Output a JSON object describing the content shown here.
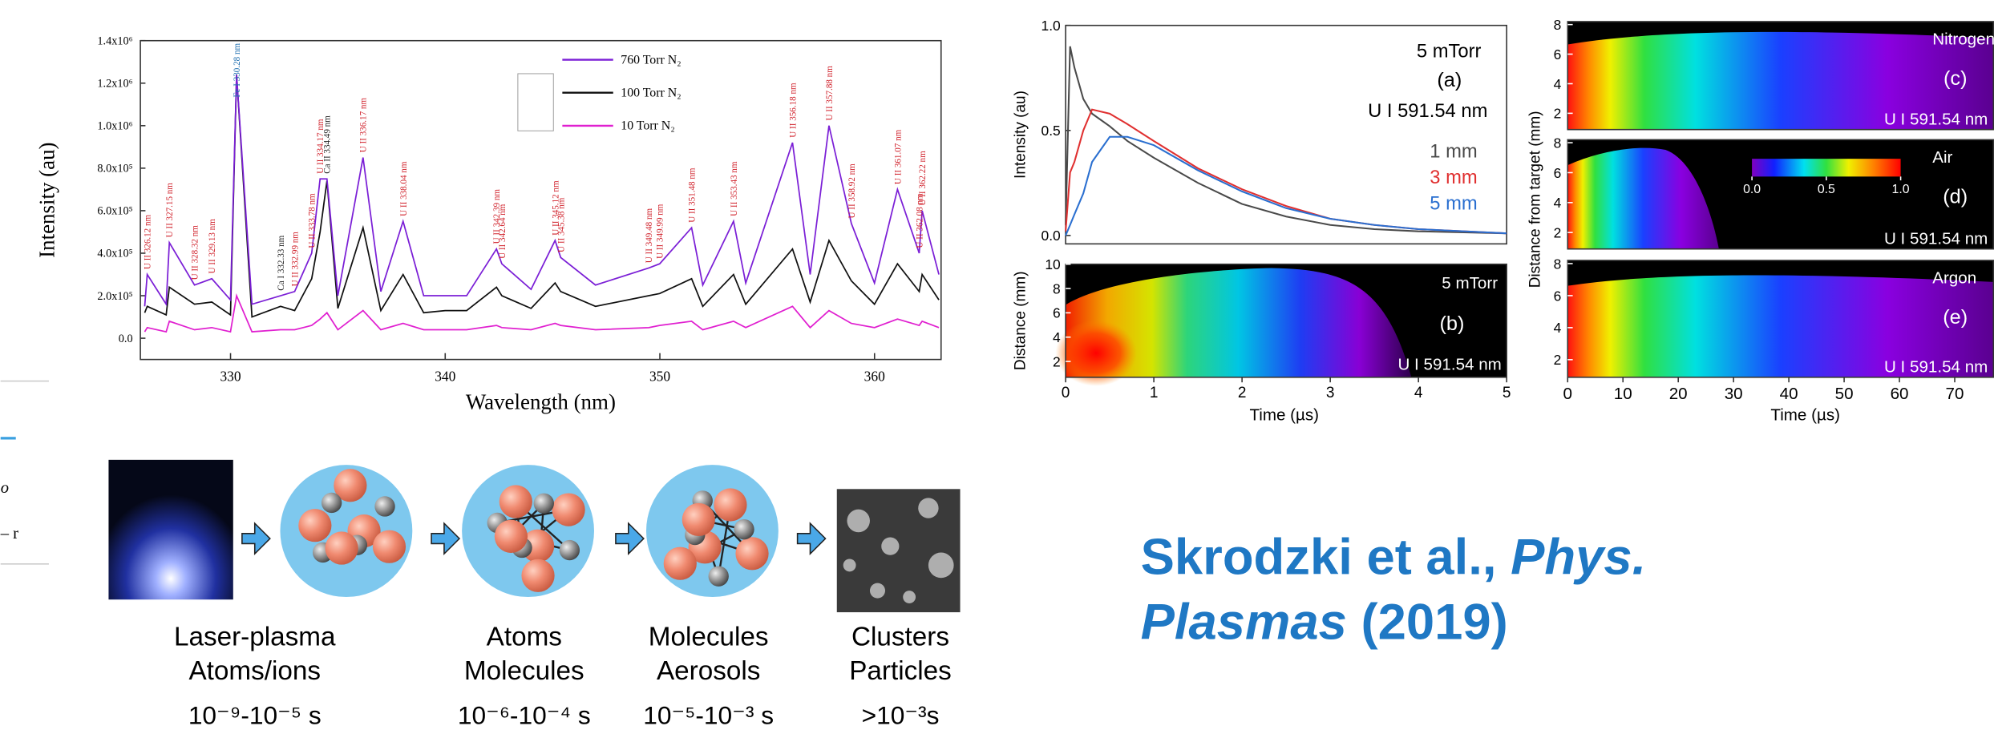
{
  "chart_data": [
    {
      "type": "line",
      "x_label": "Wavelength (nm)",
      "y_label": "Intensity (au)",
      "x": [
        326,
        326.12,
        327,
        327.15,
        328.32,
        329.13,
        330,
        330.28,
        331,
        332.33,
        332.99,
        333.78,
        334.17,
        334.49,
        335,
        336.17,
        337,
        338.04,
        339,
        340,
        341,
        342.39,
        342.64,
        344,
        345.12,
        345.38,
        347,
        349.48,
        349.99,
        351.48,
        352,
        353.43,
        354,
        356.18,
        357,
        357.88,
        358.92,
        360,
        361.07,
        362.08,
        362.22,
        363
      ],
      "series": [
        {
          "name": "760 Torr N₂",
          "color": "#7b1fd6",
          "values": [
            150000,
            300000,
            160000,
            450000,
            250000,
            280000,
            180000,
            1240000,
            160000,
            200000,
            220000,
            400000,
            750000,
            750000,
            200000,
            850000,
            220000,
            550000,
            200000,
            200000,
            200000,
            420000,
            350000,
            230000,
            460000,
            380000,
            250000,
            330000,
            350000,
            520000,
            250000,
            550000,
            260000,
            920000,
            300000,
            1000000,
            540000,
            260000,
            700000,
            400000,
            600000,
            300000
          ]
        },
        {
          "name": "100 Torr N₂",
          "color": "#111111",
          "values": [
            120000,
            150000,
            110000,
            240000,
            160000,
            170000,
            110000,
            1240000,
            100000,
            150000,
            130000,
            280000,
            500000,
            740000,
            140000,
            520000,
            130000,
            300000,
            120000,
            130000,
            130000,
            240000,
            200000,
            140000,
            260000,
            220000,
            150000,
            200000,
            210000,
            280000,
            150000,
            300000,
            160000,
            420000,
            170000,
            460000,
            270000,
            160000,
            350000,
            220000,
            300000,
            180000
          ]
        },
        {
          "name": "10 Torr N₂",
          "color": "#e020d0",
          "values": [
            30000,
            50000,
            30000,
            80000,
            40000,
            50000,
            30000,
            200000,
            30000,
            40000,
            40000,
            60000,
            90000,
            120000,
            40000,
            130000,
            40000,
            70000,
            40000,
            40000,
            40000,
            60000,
            50000,
            40000,
            70000,
            60000,
            40000,
            50000,
            60000,
            80000,
            40000,
            80000,
            50000,
            150000,
            50000,
            130000,
            70000,
            50000,
            90000,
            60000,
            80000,
            50000
          ]
        }
      ],
      "xlim": [
        325.8,
        363.1
      ],
      "xticks": [
        330,
        340,
        350,
        360
      ],
      "ylim": [
        -100000,
        1400000
      ],
      "yticks": [
        {
          "value": 0,
          "label": "0.0"
        },
        {
          "value": 200000,
          "label": "2.0x10⁵"
        },
        {
          "value": 400000,
          "label": "4.0x10⁵"
        },
        {
          "value": 600000,
          "label": "6.0x10⁵"
        },
        {
          "value": 800000,
          "label": "8.0x10⁵"
        },
        {
          "value": 1000000,
          "label": "1.0x10⁶"
        },
        {
          "value": 1200000,
          "label": "1.2x10⁶"
        },
        {
          "value": 1400000,
          "label": "1.4x10⁶"
        }
      ],
      "annotations": [
        {
          "text": "U II 326.12 nm",
          "x": 326.12,
          "color": "#d0202a"
        },
        {
          "text": "U II 327.15 nm",
          "x": 327.15,
          "color": "#d0202a"
        },
        {
          "text": "U II 328.32 nm",
          "x": 328.32,
          "color": "#d0202a"
        },
        {
          "text": "U II 329.13 nm",
          "x": 329.13,
          "color": "#d0202a"
        },
        {
          "text": "Fe I 330.28 nm",
          "x": 330.28,
          "color": "#1f6fb0"
        },
        {
          "text": "U II 332.99 nm",
          "x": 332.99,
          "color": "#d0202a"
        },
        {
          "text": "Ca I 332.33 nm",
          "x": 332.33,
          "color": "#222222"
        },
        {
          "text": "U II 333.78 nm",
          "x": 333.78,
          "color": "#d0202a"
        },
        {
          "text": "U II 334.17 nm",
          "x": 334.17,
          "color": "#d0202a"
        },
        {
          "text": "Ca II 334.49 nm",
          "x": 334.49,
          "color": "#222222"
        },
        {
          "text": "U II 336.17 nm",
          "x": 336.17,
          "color": "#d0202a"
        },
        {
          "text": "U II 338.04 nm",
          "x": 338.04,
          "color": "#d0202a"
        },
        {
          "text": "U II 342.39 nm",
          "x": 342.39,
          "color": "#d0202a"
        },
        {
          "text": "U II 342.64 nm",
          "x": 342.64,
          "color": "#d0202a"
        },
        {
          "text": "U II 345.12 nm",
          "x": 345.12,
          "color": "#d0202a"
        },
        {
          "text": "U II 345.38 nm",
          "x": 345.38,
          "color": "#d0202a"
        },
        {
          "text": "U II 349.48 nm",
          "x": 349.48,
          "color": "#d0202a"
        },
        {
          "text": "U II 349.99 nm",
          "x": 349.99,
          "color": "#d0202a"
        },
        {
          "text": "U II 351.48 nm",
          "x": 351.48,
          "color": "#d0202a"
        },
        {
          "text": "U II 353.43 nm",
          "x": 353.43,
          "color": "#d0202a"
        },
        {
          "text": "U II 356.18 nm",
          "x": 356.18,
          "color": "#d0202a"
        },
        {
          "text": "U II 357.88 nm",
          "x": 357.88,
          "color": "#d0202a"
        },
        {
          "text": "U II 358.92 nm",
          "x": 358.92,
          "color": "#d0202a"
        },
        {
          "text": "U II 361.07 nm",
          "x": 361.07,
          "color": "#d0202a"
        },
        {
          "text": "U II 362.08 nm",
          "x": 362.08,
          "color": "#d0202a"
        },
        {
          "text": "U II 362.22 nm",
          "x": 362.22,
          "color": "#d0202a"
        }
      ]
    },
    {
      "type": "line",
      "y_label": "Intensity (au)",
      "x": [
        0,
        0.05,
        0.1,
        0.2,
        0.3,
        0.5,
        0.7,
        1,
        1.5,
        2,
        2.5,
        3,
        3.5,
        4,
        5
      ],
      "series": [
        {
          "name": "1 mm",
          "color": "#4a4a4a",
          "values": [
            0.05,
            0.9,
            0.8,
            0.65,
            0.58,
            0.52,
            0.45,
            0.37,
            0.25,
            0.15,
            0.09,
            0.05,
            0.03,
            0.02,
            0.01
          ]
        },
        {
          "name": "3 mm",
          "color": "#e03030",
          "values": [
            0.02,
            0.3,
            0.35,
            0.5,
            0.6,
            0.58,
            0.53,
            0.45,
            0.32,
            0.22,
            0.14,
            0.08,
            0.05,
            0.03,
            0.01
          ]
        },
        {
          "name": "5 mm",
          "color": "#2a6fd0",
          "values": [
            0,
            0.05,
            0.1,
            0.2,
            0.35,
            0.47,
            0.47,
            0.43,
            0.31,
            0.21,
            0.13,
            0.08,
            0.05,
            0.03,
            0.01
          ]
        }
      ],
      "xlim": [
        0,
        5
      ],
      "ylim": [
        -0.04,
        1.0
      ],
      "yticks": [
        {
          "value": 0,
          "label": "0.0"
        },
        {
          "value": 0.5,
          "label": "0.5"
        },
        {
          "value": 1,
          "label": "1.0"
        }
      ],
      "annotations": [
        "5 mTorr",
        "(a)",
        "U I 591.54 nm"
      ]
    },
    {
      "type": "heatmap",
      "x_label": "Time (µs)",
      "y_label": "Distance (mm)",
      "xlim": [
        0,
        5
      ],
      "xticks": [
        0,
        1,
        2,
        3,
        4,
        5
      ],
      "ylim": [
        0.7,
        10
      ],
      "yticks": [
        2,
        4,
        6,
        8,
        10
      ],
      "annotations": [
        "5 mTorr",
        "(b)",
        "U I 591.54 nm"
      ]
    },
    {
      "type": "heatmap",
      "x_label": "Time (µs)",
      "y_label": "Distance from target (mm)",
      "xlim": [
        0,
        77
      ],
      "xticks": [
        0,
        10,
        20,
        30,
        40,
        50,
        60,
        70
      ],
      "colorbar": {
        "lim": [
          0,
          1
        ],
        "ticks": [
          {
            "value": 0,
            "label": "0.0"
          },
          {
            "value": 0.5,
            "label": "0.5"
          },
          {
            "value": 1,
            "label": "1.0"
          }
        ]
      },
      "panels": [
        {
          "gas": "Nitrogen",
          "tag": "(c)",
          "line": "U I 591.54 nm",
          "ylim": [
            0.9,
            8.2
          ],
          "yticks": [
            2,
            4,
            6,
            8
          ]
        },
        {
          "gas": "Air",
          "tag": "(d)",
          "line": "U I 591.54 nm",
          "ylim": [
            0.9,
            8.2
          ],
          "yticks": [
            2,
            4,
            6,
            8
          ]
        },
        {
          "gas": "Argon",
          "tag": "(e)",
          "line": "U I 591.54 nm",
          "ylim": [
            0.9,
            8.2
          ],
          "yticks": [
            2,
            4,
            6,
            8
          ]
        }
      ]
    }
  ],
  "diagram": {
    "stages": [
      {
        "lines": [
          "Laser-plasma",
          "Atoms/ions"
        ],
        "time": "10⁻⁹-10⁻⁵ s"
      },
      {
        "lines": [
          "Atoms",
          "Molecules"
        ],
        "time": "10⁻⁶-10⁻⁴ s"
      },
      {
        "lines": [
          "Molecules",
          "Aerosols"
        ],
        "time": "10⁻⁵-10⁻³ s"
      },
      {
        "lines": [
          "Clusters",
          "Particles"
        ],
        "time": ">10⁻³s"
      }
    ]
  },
  "citation": {
    "authors": "Skrodzki et al.,",
    "journal": [
      "Phys.",
      "Plasmas"
    ],
    "year": "(2019)"
  },
  "fragments": [
    "o",
    "– r"
  ]
}
